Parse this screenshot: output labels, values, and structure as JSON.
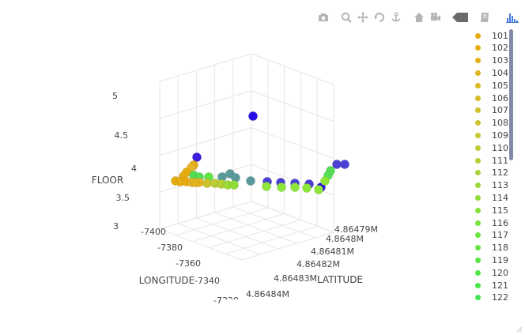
{
  "modebar": {
    "icons": [
      "camera-icon",
      "zoom-icon",
      "pan-icon",
      "orbit-rotation-icon",
      "turntable-rotation-icon",
      "reset-camera-icon",
      "reset-last-view-icon",
      "hover-closest-icon",
      "toggle-spike-lines-icon",
      "plotly-logo-icon"
    ]
  },
  "colors": {
    "floor5": "#2a10e3",
    "floor4_violet": "#4b3fd4",
    "floor4_teal": "#5b9a9a",
    "lime": "#8ee63a",
    "green": "#55dd55",
    "amber": "#e6ac12",
    "gold": "#e6b42a",
    "grid": "#e6e6e6"
  },
  "chart_data": {
    "type": "scatter3d",
    "axes": {
      "x": {
        "title": "LONGITUDE",
        "ticks": [
          "-7400",
          "-7380",
          "-7360",
          "-7340",
          "-7320"
        ]
      },
      "y": {
        "title": "LATITUDE",
        "ticks": [
          "4.86479M",
          "4.8648M",
          "4.86481M",
          "4.86482M",
          "4.86483M",
          "4.86484M"
        ]
      },
      "z": {
        "title": "FLOOR",
        "ticks": [
          "3",
          "3.5",
          "4",
          "4.5",
          "5"
        ],
        "range": [
          3,
          5
        ]
      }
    },
    "points": [
      {
        "floor": 5,
        "color": "#2a10e3"
      },
      {
        "floor": 4,
        "color": "#3d1ee0"
      },
      {
        "floor": 4,
        "color": "#e6ac12"
      },
      {
        "floor": 4,
        "color": "#e6b42a"
      },
      {
        "floor": 4,
        "color": "#5b9a9a"
      },
      {
        "floor": 4,
        "color": "#4b3fd4"
      },
      {
        "floor": 4,
        "color": "#8ee63a"
      },
      {
        "floor": 4,
        "color": "#55dd55"
      }
    ],
    "legend": [
      {
        "name": "101",
        "color": "#e6ac12"
      },
      {
        "name": "102",
        "color": "#e6ac12"
      },
      {
        "name": "103",
        "color": "#e3b017"
      },
      {
        "name": "104",
        "color": "#e0b41c"
      },
      {
        "name": "105",
        "color": "#dcb821"
      },
      {
        "name": "106",
        "color": "#d7bc26"
      },
      {
        "name": "107",
        "color": "#d2c02a"
      },
      {
        "name": "108",
        "color": "#cbc42e"
      },
      {
        "name": "109",
        "color": "#c4c832"
      },
      {
        "name": "110",
        "color": "#bccc33"
      },
      {
        "name": "111",
        "color": "#b3d035"
      },
      {
        "name": "112",
        "color": "#a8d436"
      },
      {
        "name": "113",
        "color": "#9cd837"
      },
      {
        "name": "114",
        "color": "#90dc38"
      },
      {
        "name": "115",
        "color": "#84e03a"
      },
      {
        "name": "116",
        "color": "#78e33d"
      },
      {
        "name": "117",
        "color": "#6de440"
      },
      {
        "name": "118",
        "color": "#62e543"
      },
      {
        "name": "119",
        "color": "#58e646"
      },
      {
        "name": "120",
        "color": "#50e649"
      },
      {
        "name": "121",
        "color": "#48e64c"
      },
      {
        "name": "122",
        "color": "#42e650"
      }
    ]
  }
}
